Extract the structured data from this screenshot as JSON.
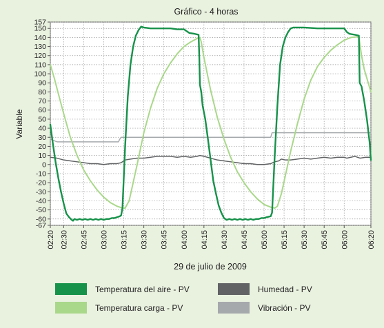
{
  "chart_data": {
    "type": "line",
    "title": "Gráfico - 4 horas",
    "xlabel": "29 de julio de 2009",
    "ylabel": "Variable",
    "ylim": [
      -67,
      157
    ],
    "yticks": [
      157,
      150,
      140,
      130,
      120,
      110,
      100,
      90,
      80,
      70,
      60,
      50,
      40,
      30,
      20,
      10,
      0,
      -10,
      -20,
      -30,
      -40,
      -50,
      -60,
      -67
    ],
    "ytick_labels": [
      "157",
      "150",
      "140",
      "130",
      "120",
      "110",
      "100",
      "90",
      "80",
      "70",
      "60",
      "50",
      "40",
      "30",
      "20",
      "10",
      "0",
      "-10",
      "-20",
      "-30",
      "-40",
      "-50",
      "-60",
      "-67"
    ],
    "xticks": [
      "02:20",
      "02:30",
      "02:45",
      "03:00",
      "03:15",
      "03:30",
      "03:45",
      "04:00",
      "04:15",
      "04:30",
      "04:45",
      "05:00",
      "05:15",
      "05:30",
      "05:45",
      "06:00",
      "06:20"
    ],
    "xtick_minutes": [
      140,
      150,
      165,
      180,
      195,
      210,
      225,
      240,
      255,
      270,
      285,
      300,
      315,
      330,
      345,
      360,
      380
    ],
    "xlim_minutes": [
      140,
      380
    ],
    "grid": true,
    "legend_position": "bottom",
    "series": [
      {
        "name": "Temperatura del aire - PV",
        "color": "#16924a",
        "width": 2.4,
        "points": [
          [
            140,
            44
          ],
          [
            142,
            22
          ],
          [
            144,
            2
          ],
          [
            146,
            -15
          ],
          [
            148,
            -30
          ],
          [
            150,
            -43
          ],
          [
            152,
            -54
          ],
          [
            154,
            -58
          ],
          [
            156,
            -61
          ],
          [
            157,
            -62
          ],
          [
            158,
            -60
          ],
          [
            160,
            -61
          ],
          [
            162,
            -60
          ],
          [
            164,
            -61
          ],
          [
            166,
            -60
          ],
          [
            168,
            -61
          ],
          [
            170,
            -60
          ],
          [
            172,
            -61
          ],
          [
            174,
            -60
          ],
          [
            176,
            -61
          ],
          [
            178,
            -60
          ],
          [
            180,
            -61
          ],
          [
            182,
            -60
          ],
          [
            184,
            -60
          ],
          [
            186,
            -59
          ],
          [
            188,
            -59
          ],
          [
            190,
            -58
          ],
          [
            192,
            -57
          ],
          [
            193,
            -56
          ],
          [
            194,
            -48
          ],
          [
            196,
            20
          ],
          [
            198,
            75
          ],
          [
            200,
            110
          ],
          [
            202,
            130
          ],
          [
            204,
            142
          ],
          [
            206,
            148
          ],
          [
            208,
            152
          ],
          [
            210,
            151
          ],
          [
            215,
            150
          ],
          [
            220,
            150
          ],
          [
            225,
            150
          ],
          [
            230,
            150
          ],
          [
            235,
            149
          ],
          [
            240,
            149
          ],
          [
            242,
            147
          ],
          [
            244,
            145
          ],
          [
            248,
            144
          ],
          [
            251,
            143
          ],
          [
            251.5,
            120
          ],
          [
            252,
            88
          ],
          [
            253,
            80
          ],
          [
            254,
            65
          ],
          [
            256,
            50
          ],
          [
            258,
            28
          ],
          [
            260,
            5
          ],
          [
            262,
            -18
          ],
          [
            264,
            -32
          ],
          [
            266,
            -45
          ],
          [
            268,
            -53
          ],
          [
            270,
            -59
          ],
          [
            272,
            -61
          ],
          [
            274,
            -60
          ],
          [
            276,
            -61
          ],
          [
            278,
            -60
          ],
          [
            280,
            -61
          ],
          [
            282,
            -60
          ],
          [
            284,
            -61
          ],
          [
            286,
            -60
          ],
          [
            288,
            -61
          ],
          [
            290,
            -60
          ],
          [
            292,
            -61
          ],
          [
            294,
            -60
          ],
          [
            296,
            -60
          ],
          [
            298,
            -59
          ],
          [
            300,
            -59
          ],
          [
            302,
            -58
          ],
          [
            305,
            -57
          ],
          [
            306,
            -53
          ],
          [
            308,
            10
          ],
          [
            310,
            65
          ],
          [
            312,
            110
          ],
          [
            314,
            130
          ],
          [
            316,
            140
          ],
          [
            318,
            146
          ],
          [
            320,
            150
          ],
          [
            322,
            151
          ],
          [
            330,
            151
          ],
          [
            340,
            150
          ],
          [
            350,
            150
          ],
          [
            360,
            150
          ],
          [
            362,
            146
          ],
          [
            364,
            144
          ],
          [
            368,
            143
          ],
          [
            371,
            142
          ],
          [
            371.3,
            115
          ],
          [
            371.6,
            90
          ],
          [
            373,
            86
          ],
          [
            375,
            70
          ],
          [
            377,
            50
          ],
          [
            379,
            25
          ],
          [
            380,
            5
          ]
        ]
      },
      {
        "name": "Temperatura carga - PV",
        "color": "#a9d88a",
        "width": 2,
        "points": [
          [
            140,
            110
          ],
          [
            143,
            95
          ],
          [
            146,
            78
          ],
          [
            150,
            56
          ],
          [
            155,
            30
          ],
          [
            160,
            10
          ],
          [
            165,
            -6
          ],
          [
            170,
            -18
          ],
          [
            175,
            -28
          ],
          [
            180,
            -36
          ],
          [
            185,
            -42
          ],
          [
            190,
            -46
          ],
          [
            194,
            -48
          ],
          [
            196,
            -48
          ],
          [
            199,
            -40
          ],
          [
            202,
            -20
          ],
          [
            205,
            0
          ],
          [
            210,
            35
          ],
          [
            215,
            62
          ],
          [
            220,
            84
          ],
          [
            225,
            100
          ],
          [
            230,
            112
          ],
          [
            235,
            122
          ],
          [
            240,
            130
          ],
          [
            245,
            135
          ],
          [
            250,
            139
          ],
          [
            252,
            140
          ],
          [
            253,
            135
          ],
          [
            255,
            118
          ],
          [
            260,
            82
          ],
          [
            265,
            52
          ],
          [
            270,
            28
          ],
          [
            275,
            8
          ],
          [
            280,
            -8
          ],
          [
            285,
            -20
          ],
          [
            290,
            -30
          ],
          [
            295,
            -38
          ],
          [
            300,
            -44
          ],
          [
            305,
            -47
          ],
          [
            308,
            -48
          ],
          [
            310,
            -46
          ],
          [
            313,
            -32
          ],
          [
            316,
            -12
          ],
          [
            320,
            15
          ],
          [
            325,
            45
          ],
          [
            330,
            72
          ],
          [
            335,
            93
          ],
          [
            340,
            108
          ],
          [
            345,
            118
          ],
          [
            350,
            126
          ],
          [
            355,
            132
          ],
          [
            360,
            137
          ],
          [
            365,
            140
          ],
          [
            371,
            141
          ],
          [
            373,
            120
          ],
          [
            375,
            105
          ],
          [
            378,
            90
          ],
          [
            380,
            80
          ]
        ]
      },
      {
        "name": "Humedad - PV",
        "color": "#606264",
        "width": 1.5,
        "points": [
          [
            140,
            8
          ],
          [
            145,
            7
          ],
          [
            150,
            5
          ],
          [
            155,
            4
          ],
          [
            160,
            3
          ],
          [
            165,
            2
          ],
          [
            170,
            1
          ],
          [
            175,
            1
          ],
          [
            180,
            0
          ],
          [
            185,
            1
          ],
          [
            190,
            1
          ],
          [
            193,
            2
          ],
          [
            196,
            5
          ],
          [
            200,
            6
          ],
          [
            205,
            7
          ],
          [
            210,
            7
          ],
          [
            215,
            8
          ],
          [
            220,
            9
          ],
          [
            225,
            9
          ],
          [
            230,
            9
          ],
          [
            235,
            8
          ],
          [
            240,
            9
          ],
          [
            245,
            8
          ],
          [
            250,
            9
          ],
          [
            252,
            10
          ],
          [
            255,
            9
          ],
          [
            260,
            7
          ],
          [
            265,
            5
          ],
          [
            270,
            4
          ],
          [
            275,
            3
          ],
          [
            280,
            2
          ],
          [
            285,
            1
          ],
          [
            290,
            1
          ],
          [
            295,
            0
          ],
          [
            300,
            0
          ],
          [
            305,
            1
          ],
          [
            308,
            3
          ],
          [
            311,
            4
          ],
          [
            313,
            6
          ],
          [
            316,
            5
          ],
          [
            320,
            5
          ],
          [
            325,
            6
          ],
          [
            330,
            7
          ],
          [
            335,
            6
          ],
          [
            340,
            7
          ],
          [
            345,
            8
          ],
          [
            350,
            7
          ],
          [
            355,
            8
          ],
          [
            360,
            8
          ],
          [
            362,
            7
          ],
          [
            365,
            8
          ],
          [
            368,
            9
          ],
          [
            372,
            7
          ],
          [
            376,
            8
          ],
          [
            380,
            8
          ]
        ]
      },
      {
        "name": "Vibración - PV",
        "color": "#a6a9ac",
        "width": 1.5,
        "points": [
          [
            140,
            28
          ],
          [
            145,
            25
          ],
          [
            150,
            25
          ],
          [
            160,
            25
          ],
          [
            170,
            25
          ],
          [
            180,
            25
          ],
          [
            191,
            25
          ],
          [
            192,
            28
          ],
          [
            193,
            30
          ],
          [
            200,
            30
          ],
          [
            210,
            30
          ],
          [
            220,
            30
          ],
          [
            230,
            30
          ],
          [
            240,
            30
          ],
          [
            250,
            30
          ],
          [
            260,
            30
          ],
          [
            270,
            30
          ],
          [
            280,
            30
          ],
          [
            290,
            30
          ],
          [
            300,
            30
          ],
          [
            305,
            30
          ],
          [
            306,
            35
          ],
          [
            310,
            35
          ],
          [
            320,
            35
          ],
          [
            330,
            35
          ],
          [
            340,
            35
          ],
          [
            350,
            35
          ],
          [
            360,
            35
          ],
          [
            370,
            35
          ],
          [
            380,
            35
          ]
        ]
      }
    ]
  }
}
